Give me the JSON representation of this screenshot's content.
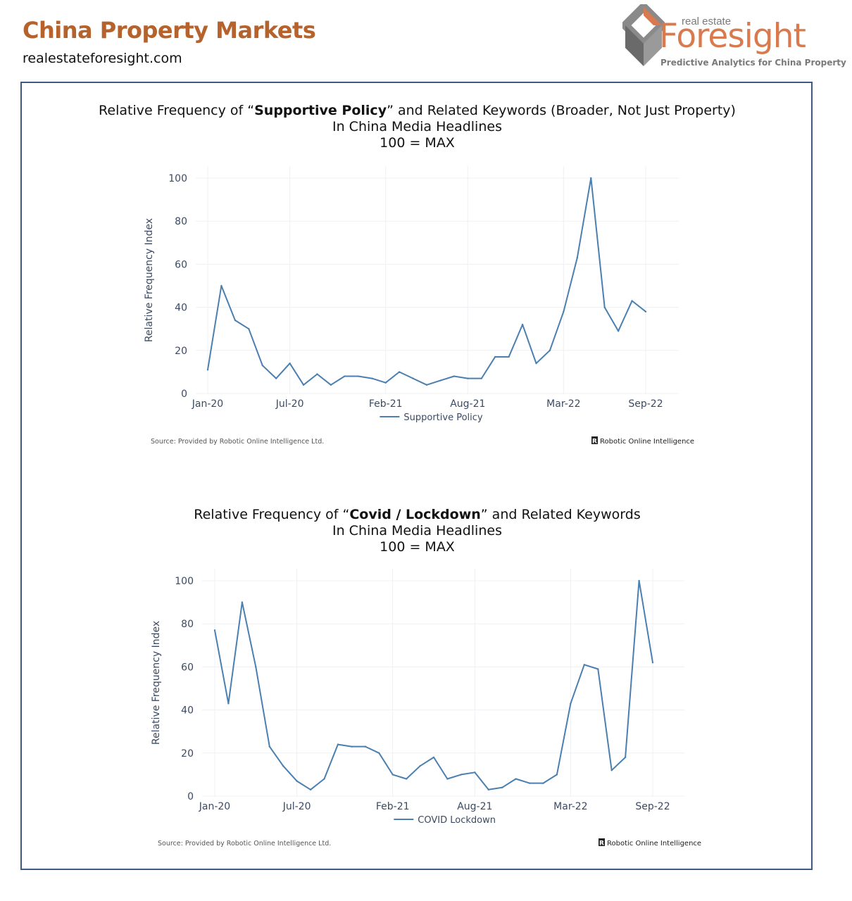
{
  "header": {
    "title": "China Property Markets",
    "url": "realestateforesight.com",
    "title_color": "#b5622c"
  },
  "logo": {
    "small": "real estate",
    "big": "Foresight",
    "tagline": "Predictive Analytics for China Property",
    "accent_color": "#d97a4e",
    "gray_color": "#7a7a7a"
  },
  "frame_color": "#3e5a7f",
  "line_color": "#4a7fb0",
  "chart_data": [
    {
      "type": "line",
      "title_pre": "Relative Frequency of “",
      "title_bold": "Supportive Policy",
      "title_post": "” and Related Keywords (Broader, Not Just Property)",
      "title_line2": "In China Media Headlines",
      "title_line3": "100 = MAX",
      "xlabel": "",
      "ylabel": "Relative Frequency Index",
      "ylim": [
        0,
        105
      ],
      "yticks": [
        0,
        20,
        40,
        60,
        80,
        100
      ],
      "x_start": "Jan-20",
      "x_end": "Sep-22",
      "xticks": [
        "Jan-20",
        "Jul-20",
        "Feb-21",
        "Aug-21",
        "Mar-22",
        "Sep-22"
      ],
      "series": [
        {
          "name": "Supportive Policy",
          "values": [
            11,
            50,
            34,
            30,
            13,
            7,
            14,
            4,
            9,
            4,
            8,
            8,
            7,
            5,
            10,
            7,
            4,
            6,
            8,
            7,
            7,
            17,
            17,
            32,
            14,
            20,
            38,
            63,
            100,
            40,
            29,
            43,
            38
          ]
        }
      ],
      "source": "Source: Provided by Robotic Online Intelligence Ltd.",
      "brand_mark": "R",
      "brand": "Robotic Online Intelligence"
    },
    {
      "type": "line",
      "title_pre": "Relative Frequency of “",
      "title_bold": "Covid / Lockdown",
      "title_post": "” and Related Keywords",
      "title_line2": "In China Media Headlines",
      "title_line3": "100 = MAX",
      "xlabel": "",
      "ylabel": "Relative Frequency Index",
      "ylim": [
        0,
        105
      ],
      "yticks": [
        0,
        20,
        40,
        60,
        80,
        100
      ],
      "x_start": "Jan-20",
      "x_end": "Sep-22",
      "xticks": [
        "Jan-20",
        "Jul-20",
        "Feb-21",
        "Aug-21",
        "Mar-22",
        "Sep-22"
      ],
      "series": [
        {
          "name": "COVID Lockdown",
          "values": [
            77,
            43,
            90,
            60,
            23,
            14,
            7,
            3,
            8,
            24,
            23,
            23,
            20,
            10,
            8,
            14,
            18,
            8,
            10,
            11,
            3,
            4,
            8,
            6,
            6,
            10,
            43,
            61,
            59,
            12,
            18,
            100,
            62
          ]
        }
      ],
      "source": "Source: Provided by Robotic Online Intelligence Ltd.",
      "brand_mark": "R",
      "brand": "Robotic Online Intelligence"
    }
  ]
}
